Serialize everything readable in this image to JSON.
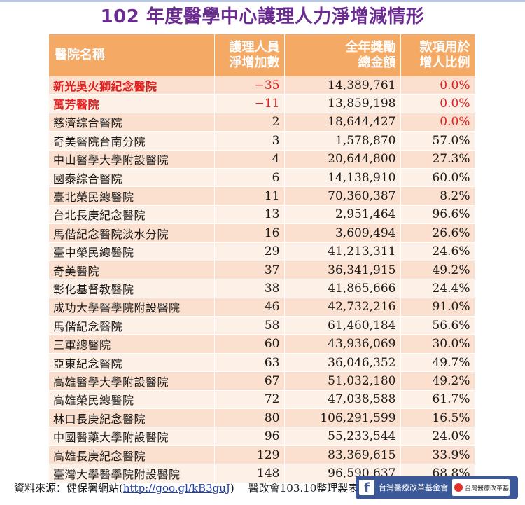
{
  "title": "102 年度醫學中心護理人力淨增減情形",
  "table": {
    "headers": {
      "hospital": "醫院名稱",
      "net_change_l1": "護理人員",
      "net_change_l2": "淨增加數",
      "award_l1": "全年獎勵",
      "award_l2": "總金額",
      "ratio_l1": "款項用於",
      "ratio_l2": "增人比例"
    },
    "rows": [
      {
        "hospital": "新光吳火獅紀念醫院",
        "net_change": "−35",
        "award": "14,389,761",
        "ratio": "0.0%"
      },
      {
        "hospital": "萬芳醫院",
        "net_change": "−11",
        "award": "13,859,198",
        "ratio": "0.0%"
      },
      {
        "hospital": "慈濟綜合醫院",
        "net_change": "2",
        "award": "18,644,427",
        "ratio": "0.0%"
      },
      {
        "hospital": "奇美醫院台南分院",
        "net_change": "3",
        "award": "1,578,870",
        "ratio": "57.0%"
      },
      {
        "hospital": "中山醫學大學附設醫院",
        "net_change": "4",
        "award": "20,644,800",
        "ratio": "27.3%"
      },
      {
        "hospital": "國泰綜合醫院",
        "net_change": "6",
        "award": "14,138,910",
        "ratio": "60.0%"
      },
      {
        "hospital": "臺北榮民總醫院",
        "net_change": "11",
        "award": "70,360,387",
        "ratio": "8.2%"
      },
      {
        "hospital": "台北長庚紀念醫院",
        "net_change": "13",
        "award": "2,951,464",
        "ratio": "96.6%"
      },
      {
        "hospital": "馬偕紀念醫院淡水分院",
        "net_change": "16",
        "award": "3,609,494",
        "ratio": "26.6%"
      },
      {
        "hospital": "臺中榮民總醫院",
        "net_change": "29",
        "award": "41,213,311",
        "ratio": "24.6%"
      },
      {
        "hospital": "奇美醫院",
        "net_change": "37",
        "award": "36,341,915",
        "ratio": "49.2%"
      },
      {
        "hospital": "彰化基督教醫院",
        "net_change": "38",
        "award": "41,865,666",
        "ratio": "24.4%"
      },
      {
        "hospital": "成功大學醫學院附設醫院",
        "net_change": "46",
        "award": "42,732,216",
        "ratio": "91.0%"
      },
      {
        "hospital": "馬偕紀念醫院",
        "net_change": "58",
        "award": "61,460,184",
        "ratio": "56.6%"
      },
      {
        "hospital": "三軍總醫院",
        "net_change": "60",
        "award": "43,936,069",
        "ratio": "30.0%"
      },
      {
        "hospital": "亞東紀念醫院",
        "net_change": "63",
        "award": "36,046,352",
        "ratio": "49.7%"
      },
      {
        "hospital": "高雄醫學大學附設醫院",
        "net_change": "67",
        "award": "51,032,180",
        "ratio": "49.2%"
      },
      {
        "hospital": "高雄榮民總醫院",
        "net_change": "72",
        "award": "47,038,588",
        "ratio": "61.7%"
      },
      {
        "hospital": "林口長庚紀念醫院",
        "net_change": "80",
        "award": "106,291,599",
        "ratio": "16.5%"
      },
      {
        "hospital": "中國醫藥大學附設醫院",
        "net_change": "96",
        "award": "55,233,544",
        "ratio": "24.0%"
      },
      {
        "hospital": "高雄長庚紀念醫院",
        "net_change": "129",
        "award": "83,369,615",
        "ratio": "33.9%"
      },
      {
        "hospital": "臺灣大學醫學院附設醫院",
        "net_change": "148",
        "award": "96,590,637",
        "ratio": "68.8%"
      }
    ]
  },
  "footer": {
    "source_prefix": "資料來源：健保署網站(",
    "source_link": "http://goo.gl/kB3guJ",
    "source_suffix": ")",
    "compiled_by": "醫改會103.10整理製表"
  },
  "fb_banner": {
    "icon": "facebook-icon",
    "text": "台灣醫療改革基金會",
    "logo_text": "台灣醫療改革基金會"
  },
  "colors": {
    "title": "#6b2c91",
    "header_bg": "#f4a965",
    "row_odd": "#fbe0cf",
    "row_even": "#fdf0e6",
    "highlight": "#e02020"
  }
}
